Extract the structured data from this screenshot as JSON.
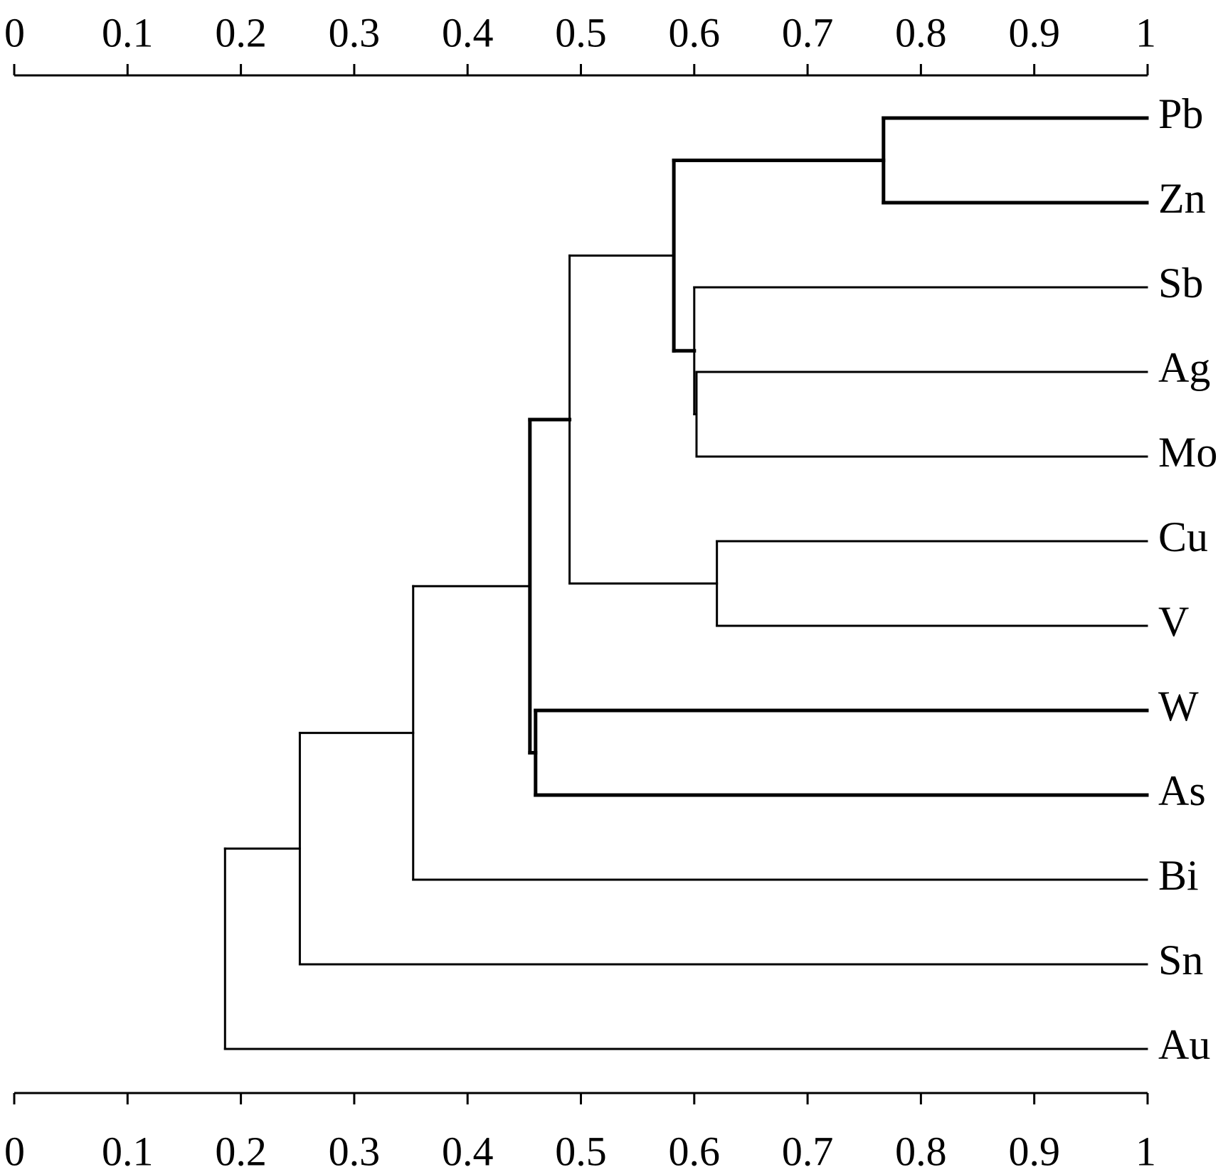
{
  "chart_data": {
    "type": "dendrogram",
    "orientation": "horizontal",
    "axis": {
      "range": [
        0,
        1
      ],
      "ticks": [
        0,
        0.1,
        0.2,
        0.3,
        0.4,
        0.5,
        0.6,
        0.7,
        0.8,
        0.9,
        1
      ],
      "tick_labels": [
        "0",
        "0.1",
        "0.2",
        "0.3",
        "0.4",
        "0.5",
        "0.6",
        "0.7",
        "0.8",
        "0.9",
        "1"
      ],
      "positions": [
        "top",
        "bottom"
      ]
    },
    "leaves": [
      "Pb",
      "Zn",
      "Sb",
      "Ag",
      "Mo",
      "Cu",
      "V",
      "W",
      "As",
      "Bi",
      "Sn",
      "Au"
    ],
    "merges": [
      {
        "id": "c1",
        "children": [
          "Pb",
          "Zn"
        ],
        "height": 0.767,
        "heavy": true
      },
      {
        "id": "c2",
        "children": [
          "Ag",
          "Mo"
        ],
        "height": 0.602
      },
      {
        "id": "c3",
        "children": [
          "Sb",
          "c2"
        ],
        "height": 0.6
      },
      {
        "id": "c4",
        "children": [
          "c1",
          "c3"
        ],
        "height": 0.582,
        "heavy": true
      },
      {
        "id": "c5",
        "children": [
          "Cu",
          "V"
        ],
        "height": 0.62
      },
      {
        "id": "c6",
        "children": [
          "c4",
          "c5"
        ],
        "height": 0.49
      },
      {
        "id": "c7",
        "children": [
          "W",
          "As"
        ],
        "height": 0.46,
        "heavy": true
      },
      {
        "id": "c8",
        "children": [
          "c6",
          "c7"
        ],
        "height": 0.455,
        "heavy": true
      },
      {
        "id": "c9",
        "children": [
          "c8",
          "Bi"
        ],
        "height": 0.352
      },
      {
        "id": "c10",
        "children": [
          "c9",
          "Sn"
        ],
        "height": 0.252
      },
      {
        "id": "c11",
        "children": [
          "c10",
          "Au"
        ],
        "height": 0.186
      }
    ]
  }
}
